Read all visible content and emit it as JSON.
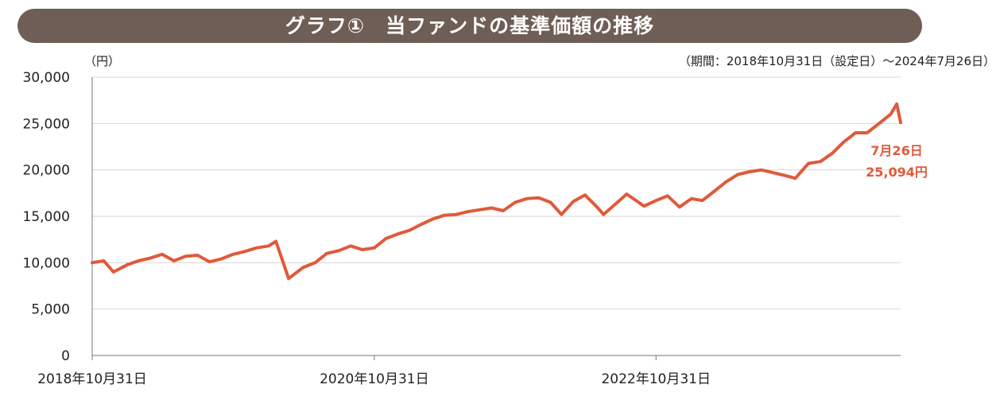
{
  "chart_data": {
    "type": "line",
    "title": "グラフ①　当ファンドの基準価額の推移",
    "ylabel": "（円）",
    "period_note": "（期間：2018年10月31日（設定日）〜2024年7月26日）",
    "ylim": [
      0,
      30000
    ],
    "y_ticks": [
      0,
      5000,
      10000,
      15000,
      20000,
      25000,
      30000
    ],
    "y_tick_labels": [
      "0",
      "5,000",
      "10,000",
      "15,000",
      "20,000",
      "25,000",
      "30,000"
    ],
    "x_range": [
      "2018-10-31",
      "2024-07-26"
    ],
    "x_ticks": [
      "2018-10-31",
      "2020-10-31",
      "2022-10-31"
    ],
    "x_tick_labels": [
      "2018年10月31日",
      "2020年10月31日",
      "2022年10月31日"
    ],
    "grid": true,
    "line_color": "#e05a3a",
    "series": [
      {
        "x": [
          "2018-10-31",
          "2018-11-30",
          "2018-12-25",
          "2019-01-31",
          "2019-02-28",
          "2019-03-31",
          "2019-04-30",
          "2019-05-31",
          "2019-06-30",
          "2019-07-31",
          "2019-08-31",
          "2019-09-30",
          "2019-10-31",
          "2019-11-30",
          "2019-12-31",
          "2020-01-31",
          "2020-02-19",
          "2020-03-23",
          "2020-04-30",
          "2020-05-31",
          "2020-06-30",
          "2020-07-31",
          "2020-08-31",
          "2020-09-30",
          "2020-10-31",
          "2020-11-30",
          "2020-12-31",
          "2021-01-31",
          "2021-02-28",
          "2021-03-31",
          "2021-04-30",
          "2021-05-31",
          "2021-06-30",
          "2021-07-31",
          "2021-08-31",
          "2021-09-30",
          "2021-10-31",
          "2021-11-30",
          "2021-12-31",
          "2022-01-31",
          "2022-02-28",
          "2022-03-31",
          "2022-04-30",
          "2022-05-31",
          "2022-06-17",
          "2022-07-31",
          "2022-08-16",
          "2022-09-30",
          "2022-10-31",
          "2022-11-30",
          "2022-12-31",
          "2023-01-31",
          "2023-02-28",
          "2023-03-31",
          "2023-04-30",
          "2023-05-31",
          "2023-06-30",
          "2023-07-31",
          "2023-08-31",
          "2023-09-30",
          "2023-10-27",
          "2023-11-30",
          "2023-12-31",
          "2024-01-31",
          "2024-02-29",
          "2024-03-31",
          "2024-04-30",
          "2024-05-31",
          "2024-06-30",
          "2024-07-16",
          "2024-07-26"
        ],
        "values": [
          10000,
          10200,
          9000,
          9800,
          10200,
          10500,
          10900,
          10200,
          10700,
          10800,
          10100,
          10400,
          10900,
          11200,
          11600,
          11800,
          12300,
          8300,
          9500,
          10000,
          11000,
          11300,
          11800,
          11400,
          11600,
          12600,
          13100,
          13500,
          14100,
          14700,
          15100,
          15200,
          15500,
          15700,
          15900,
          15600,
          16500,
          16900,
          17000,
          16500,
          15200,
          16600,
          17300,
          16000,
          15200,
          16800,
          17400,
          16100,
          16700,
          17200,
          16000,
          16900,
          16700,
          17700,
          18700,
          19500,
          19800,
          20000,
          19700,
          19400,
          19100,
          20700,
          20900,
          21800,
          23000,
          24000,
          24000,
          25000,
          26000,
          27100,
          25094
        ]
      }
    ],
    "annotation": {
      "date_label": "7月26日",
      "value_label": "25,094円",
      "color": "#e05a3a"
    }
  }
}
